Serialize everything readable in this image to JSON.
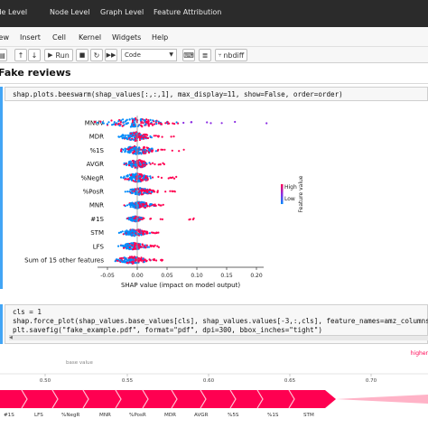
{
  "top_tabs": [
    "Code Level",
    "Node Level",
    "Graph Level",
    "Feature Attribution"
  ],
  "menu": [
    "View",
    "Insert",
    "Cell",
    "Kernel",
    "Widgets",
    "Help"
  ],
  "toolbar": {
    "run_label": "Run",
    "cell_type": "Code",
    "nbdiff_label": "nbdiff"
  },
  "heading": "Fake reviews",
  "cell1": {
    "code": "shap.plots.beeswarm(shap_values[:,:,1], max_display=11, show=False, order=order)"
  },
  "beeswarm": {
    "features": [
      "MNUV",
      "MDR",
      "%1S",
      "AVGR",
      "%NegR",
      "%PosR",
      "MNR",
      "#1S",
      "STM",
      "LFS",
      "Sum of 15 other features"
    ],
    "xlabel": "SHAP value (impact on model output)",
    "xticks": [
      "-0.05",
      "0.00",
      "0.05",
      "0.10",
      "0.15",
      "0.20"
    ],
    "colorbar": {
      "high": "High",
      "low": "Low",
      "label": "Feature value"
    },
    "colors": {
      "high": "#ff0051",
      "low": "#008bfb"
    }
  },
  "cell2": {
    "line1": "cls = 1",
    "line2": "shap.force_plot(shap_values.base_values[cls], shap_values.values[-3,:,cls], feature_names=amz_columns, matplotlib=True, show=False)",
    "line3": "plt.savefig(\"fake_example.pdf\", format=\"pdf\", dpi=300, bbox_inches=\"tight\")"
  },
  "forceplot": {
    "higher_label": "higher",
    "base_value_label": "base value",
    "ticks": [
      "0.50",
      "0.55",
      "0.60",
      "0.65",
      "0.70"
    ],
    "features": [
      "#1S",
      "LFS",
      "%NegR",
      "MNR",
      "%PosR",
      "MDR",
      "AVGR",
      "%5S",
      "%1S",
      "STM"
    ]
  }
}
